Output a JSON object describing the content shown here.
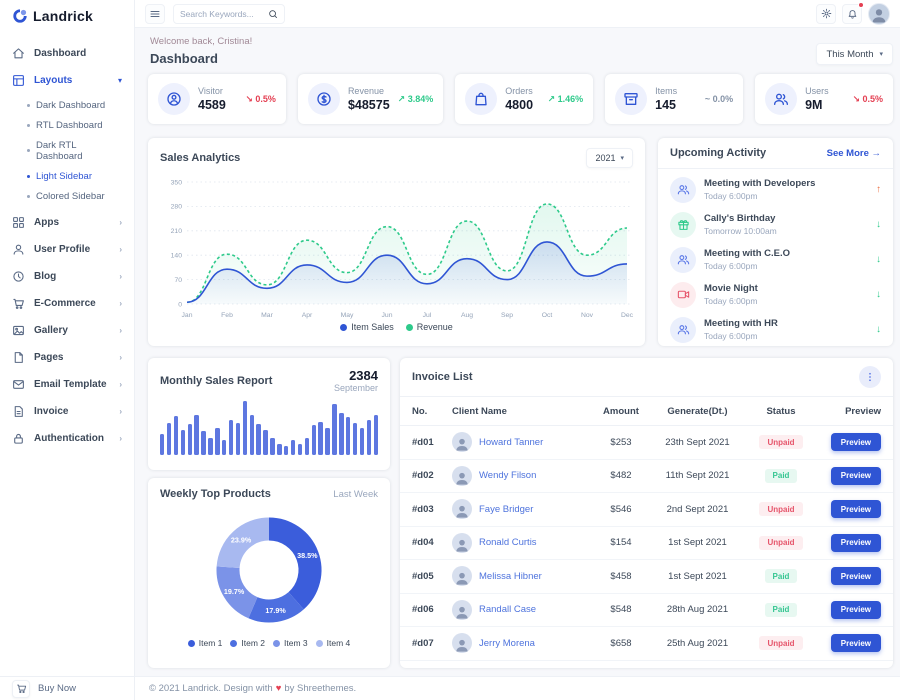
{
  "brand": {
    "name": "Landrick"
  },
  "topbar": {
    "search_placeholder": "Search Keywords...",
    "icons": [
      "menu-icon",
      "search-icon",
      "gear-icon",
      "bell-icon",
      "avatar"
    ]
  },
  "header": {
    "welcome": "Welcome back, Cristina!",
    "title": "Dashboard",
    "period": "This Month"
  },
  "sidebar": {
    "items": [
      {
        "label": "Dashboard",
        "icon": "home-icon",
        "expandable": false,
        "active": false
      },
      {
        "label": "Layouts",
        "icon": "layout-icon",
        "expandable": true,
        "expanded": true,
        "active": true,
        "children": [
          {
            "label": "Dark Dashboard",
            "active": false
          },
          {
            "label": "RTL Dashboard",
            "active": false
          },
          {
            "label": "Dark RTL Dashboard",
            "active": false
          },
          {
            "label": "Light Sidebar",
            "active": true
          },
          {
            "label": "Colored Sidebar",
            "active": false
          }
        ]
      },
      {
        "label": "Apps",
        "icon": "grid-icon",
        "expandable": true,
        "active": false
      },
      {
        "label": "User Profile",
        "icon": "user-icon",
        "expandable": true,
        "active": false
      },
      {
        "label": "Blog",
        "icon": "clock-icon",
        "expandable": true,
        "active": false
      },
      {
        "label": "E-Commerce",
        "icon": "cart-icon",
        "expandable": true,
        "active": false
      },
      {
        "label": "Gallery",
        "icon": "image-icon",
        "expandable": true,
        "active": false
      },
      {
        "label": "Pages",
        "icon": "file-icon",
        "expandable": true,
        "active": false
      },
      {
        "label": "Email Template",
        "icon": "mail-icon",
        "expandable": true,
        "active": false
      },
      {
        "label": "Invoice",
        "icon": "invoice-icon",
        "expandable": true,
        "active": false
      },
      {
        "label": "Authentication",
        "icon": "lock-icon",
        "expandable": true,
        "active": false
      }
    ],
    "buy_now": "Buy Now"
  },
  "stats": [
    {
      "icon": "visitor-icon",
      "label": "Visitor",
      "value": "4589",
      "delta": "0.5%",
      "trend": "down"
    },
    {
      "icon": "revenue-icon",
      "label": "Revenue",
      "value": "$48575",
      "delta": "3.84%",
      "trend": "up"
    },
    {
      "icon": "orders-icon",
      "label": "Orders",
      "value": "4800",
      "delta": "1.46%",
      "trend": "up"
    },
    {
      "icon": "items-icon",
      "label": "Items",
      "value": "145",
      "delta": "0.0%",
      "trend": "flat"
    },
    {
      "icon": "users-icon",
      "label": "Users",
      "value": "9M",
      "delta": "0.5%",
      "trend": "down"
    }
  ],
  "sales_analytics": {
    "title": "Sales Analytics",
    "year": "2021",
    "chart_data": {
      "type": "line",
      "x": [
        "Jan",
        "Feb",
        "Mar",
        "Apr",
        "May",
        "Jun",
        "Jul",
        "Aug",
        "Sep",
        "Oct",
        "Nov",
        "Dec"
      ],
      "series": [
        {
          "name": "Revenue",
          "color": "#2eca8b",
          "style": "dashed",
          "values": [
            5,
            143,
            55,
            183,
            90,
            222,
            85,
            238,
            95,
            287,
            140,
            218
          ]
        },
        {
          "name": "Item Sales",
          "color": "#2f55d4",
          "style": "solid",
          "values": [
            5,
            100,
            45,
            112,
            62,
            140,
            58,
            130,
            70,
            178,
            80,
            115
          ]
        }
      ],
      "legend_order": [
        "Item Sales",
        "Revenue"
      ],
      "ylim": [
        0,
        350
      ],
      "yticks": [
        0,
        70,
        140,
        210,
        280,
        350
      ],
      "grid": true,
      "legend_position": "bottom"
    }
  },
  "upcoming_activity": {
    "title": "Upcoming Activity",
    "see_more": "See More",
    "arrow": "→",
    "items": [
      {
        "icon": "meeting-icon",
        "tone": "blue",
        "title": "Meeting with Developers",
        "time": "Today 6:00pm",
        "direction": "up"
      },
      {
        "icon": "gift-icon",
        "tone": "green",
        "title": "Cally's Birthday",
        "time": "Tomorrow 10:00am",
        "direction": "down"
      },
      {
        "icon": "meeting-icon",
        "tone": "blue",
        "title": "Meeting with C.E.O",
        "time": "Today 6:00pm",
        "direction": "down"
      },
      {
        "icon": "video-icon",
        "tone": "red",
        "title": "Movie Night",
        "time": "Today 6:00pm",
        "direction": "down"
      },
      {
        "icon": "meeting-icon",
        "tone": "blue",
        "title": "Meeting with HR",
        "time": "Today 6:00pm",
        "direction": "down"
      }
    ]
  },
  "monthly_sales": {
    "title": "Monthly Sales Report",
    "value": "2384",
    "month": "September",
    "chart_data": {
      "type": "bar",
      "color": "#5e77e0",
      "values": [
        38,
        60,
        72,
        46,
        58,
        74,
        44,
        32,
        50,
        28,
        64,
        60,
        100,
        74,
        58,
        46,
        32,
        20,
        16,
        28,
        20,
        32,
        56,
        62,
        50,
        94,
        78,
        70,
        60,
        50,
        64,
        74
      ]
    }
  },
  "weekly_products": {
    "title": "Weekly Top Products",
    "period": "Last Week",
    "chart_data": {
      "type": "pie",
      "donut": true,
      "labels": [
        "Item 1",
        "Item 2",
        "Item 3",
        "Item 4"
      ],
      "values": [
        38.5,
        17.9,
        19.7,
        23.9
      ],
      "colors": [
        "#3b5ddb",
        "#4d6fe0",
        "#7b93e8",
        "#a8b9f0"
      ],
      "start": "top",
      "direction": "clockwise"
    }
  },
  "invoices": {
    "title": "Invoice List",
    "columns": [
      "No.",
      "Client Name",
      "Amount",
      "Generate(Dt.)",
      "Status",
      "Preview"
    ],
    "preview_label": "Preview",
    "rows": [
      {
        "no": "#d01",
        "client": "Howard Tanner",
        "amount": "$253",
        "date": "23th Sept 2021",
        "status": "Unpaid"
      },
      {
        "no": "#d02",
        "client": "Wendy Filson",
        "amount": "$482",
        "date": "11th Sept 2021",
        "status": "Paid"
      },
      {
        "no": "#d03",
        "client": "Faye Bridger",
        "amount": "$546",
        "date": "2nd Sept 2021",
        "status": "Unpaid"
      },
      {
        "no": "#d04",
        "client": "Ronald Curtis",
        "amount": "$154",
        "date": "1st Sept 2021",
        "status": "Unpaid"
      },
      {
        "no": "#d05",
        "client": "Melissa Hibner",
        "amount": "$458",
        "date": "1st Sept 2021",
        "status": "Paid"
      },
      {
        "no": "#d06",
        "client": "Randall Case",
        "amount": "$548",
        "date": "28th Aug 2021",
        "status": "Paid"
      },
      {
        "no": "#d07",
        "client": "Jerry Morena",
        "amount": "$658",
        "date": "25th Aug 2021",
        "status": "Unpaid"
      }
    ]
  },
  "footer": {
    "text_before": "© 2021 Landrick. Design with",
    "heart": "♥",
    "text_after": "by Shreethemes."
  },
  "colors": {
    "accent": "#2f55d4",
    "success": "#2eca8b",
    "danger": "#e43f52",
    "muted": "#8492a6"
  }
}
